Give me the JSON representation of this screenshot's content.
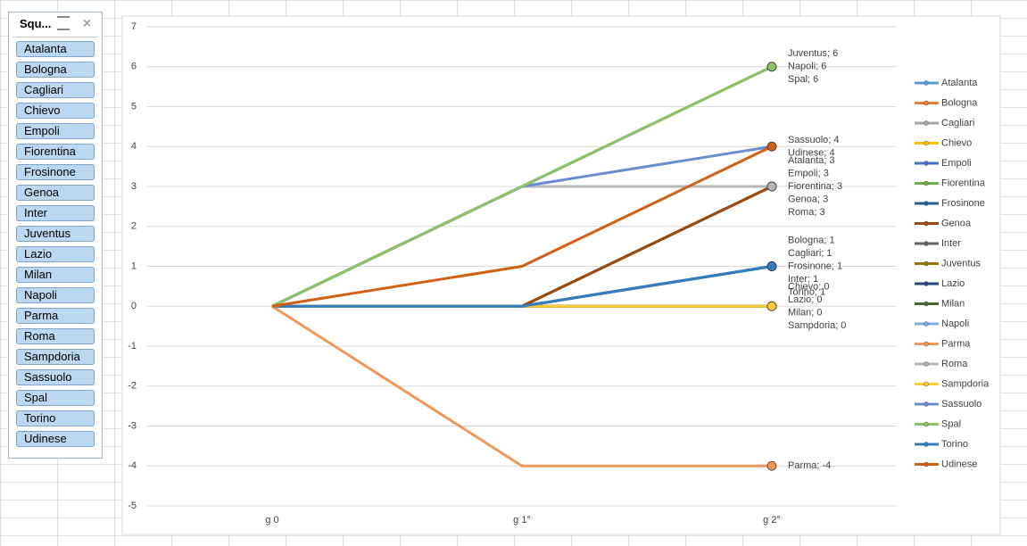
{
  "slicer": {
    "title": "Squ...",
    "items": [
      "Atalanta",
      "Bologna",
      "Cagliari",
      "Chievo",
      "Empoli",
      "Fiorentina",
      "Frosinone",
      "Genoa",
      "Inter",
      "Juventus",
      "Lazio",
      "Milan",
      "Napoli",
      "Parma",
      "Roma",
      "Sampdoria",
      "Sassuolo",
      "Spal",
      "Torino",
      "Udinese"
    ]
  },
  "chart_data": {
    "type": "line",
    "categories": [
      "g 0",
      "g 1°",
      "g 2°"
    ],
    "ylim": [
      -5,
      7
    ],
    "yticks": [
      -5,
      -4,
      -3,
      -2,
      -1,
      0,
      1,
      2,
      3,
      4,
      5,
      6,
      7
    ],
    "grid": true,
    "legend": "right",
    "series": [
      {
        "name": "Atalanta",
        "color": "#5b9bd5",
        "values": [
          0,
          3,
          3
        ],
        "value_labels": [
          null,
          null,
          "Atalanta; 3"
        ]
      },
      {
        "name": "Bologna",
        "color": "#ed7d31",
        "values": [
          0,
          0,
          1
        ],
        "value_labels": [
          null,
          null,
          "Bologna; 1"
        ]
      },
      {
        "name": "Cagliari",
        "color": "#a5a5a5",
        "values": [
          0,
          0,
          1
        ],
        "value_labels": [
          null,
          null,
          "Cagliari; 1"
        ]
      },
      {
        "name": "Chievo",
        "color": "#ffc000",
        "values": [
          0,
          0,
          0
        ],
        "value_labels": [
          null,
          null,
          "Chievo; 0"
        ]
      },
      {
        "name": "Empoli",
        "color": "#4472c4",
        "values": [
          0,
          0,
          3
        ],
        "value_labels": [
          null,
          null,
          "Empoli; 3"
        ]
      },
      {
        "name": "Fiorentina",
        "color": "#70ad47",
        "values": [
          0,
          0,
          3
        ],
        "value_labels": [
          null,
          null,
          "Fiorentina; 3"
        ]
      },
      {
        "name": "Frosinone",
        "color": "#255e91",
        "values": [
          0,
          0,
          1
        ],
        "value_labels": [
          null,
          null,
          "Frosinone; 1"
        ]
      },
      {
        "name": "Genoa",
        "color": "#9e480e",
        "values": [
          0,
          0,
          3
        ],
        "value_labels": [
          null,
          null,
          "Genoa; 3"
        ]
      },
      {
        "name": "Inter",
        "color": "#636363",
        "values": [
          0,
          0,
          1
        ],
        "value_labels": [
          null,
          null,
          "Inter; 1"
        ]
      },
      {
        "name": "Juventus",
        "color": "#997300",
        "values": [
          0,
          3,
          6
        ],
        "value_labels": [
          null,
          null,
          "Juventus; 6"
        ]
      },
      {
        "name": "Lazio",
        "color": "#264478",
        "values": [
          0,
          0,
          0
        ],
        "value_labels": [
          null,
          null,
          "Lazio; 0"
        ]
      },
      {
        "name": "Milan",
        "color": "#43682b",
        "values": [
          0,
          0,
          0
        ],
        "value_labels": [
          null,
          null,
          "Milan; 0"
        ]
      },
      {
        "name": "Napoli",
        "color": "#7cafdd",
        "values": [
          0,
          3,
          6
        ],
        "value_labels": [
          null,
          null,
          "Napoli; 6"
        ]
      },
      {
        "name": "Parma",
        "color": "#f1975a",
        "values": [
          0,
          -4,
          -4
        ],
        "value_labels": [
          null,
          null,
          "Parma; -4"
        ]
      },
      {
        "name": "Roma",
        "color": "#b7b7b7",
        "values": [
          0,
          3,
          3
        ],
        "value_labels": [
          null,
          null,
          "Roma; 3"
        ]
      },
      {
        "name": "Sampdoria",
        "color": "#ffcd33",
        "values": [
          0,
          0,
          0
        ],
        "value_labels": [
          null,
          null,
          "Sampdoria; 0"
        ]
      },
      {
        "name": "Sassuolo",
        "color": "#698ed0",
        "values": [
          0,
          3,
          4
        ],
        "value_labels": [
          null,
          null,
          "Sassuolo; 4"
        ]
      },
      {
        "name": "Spal",
        "color": "#8cc168",
        "values": [
          0,
          3,
          6
        ],
        "value_labels": [
          null,
          null,
          "Spal; 6"
        ]
      },
      {
        "name": "Torino",
        "color": "#327dc2",
        "values": [
          0,
          0,
          1
        ],
        "value_labels": [
          null,
          null,
          "Torino; 1"
        ]
      },
      {
        "name": "Udinese",
        "color": "#d26012",
        "values": [
          0,
          1,
          4
        ],
        "value_labels": [
          null,
          null,
          "Udinese; 4"
        ]
      }
    ]
  }
}
